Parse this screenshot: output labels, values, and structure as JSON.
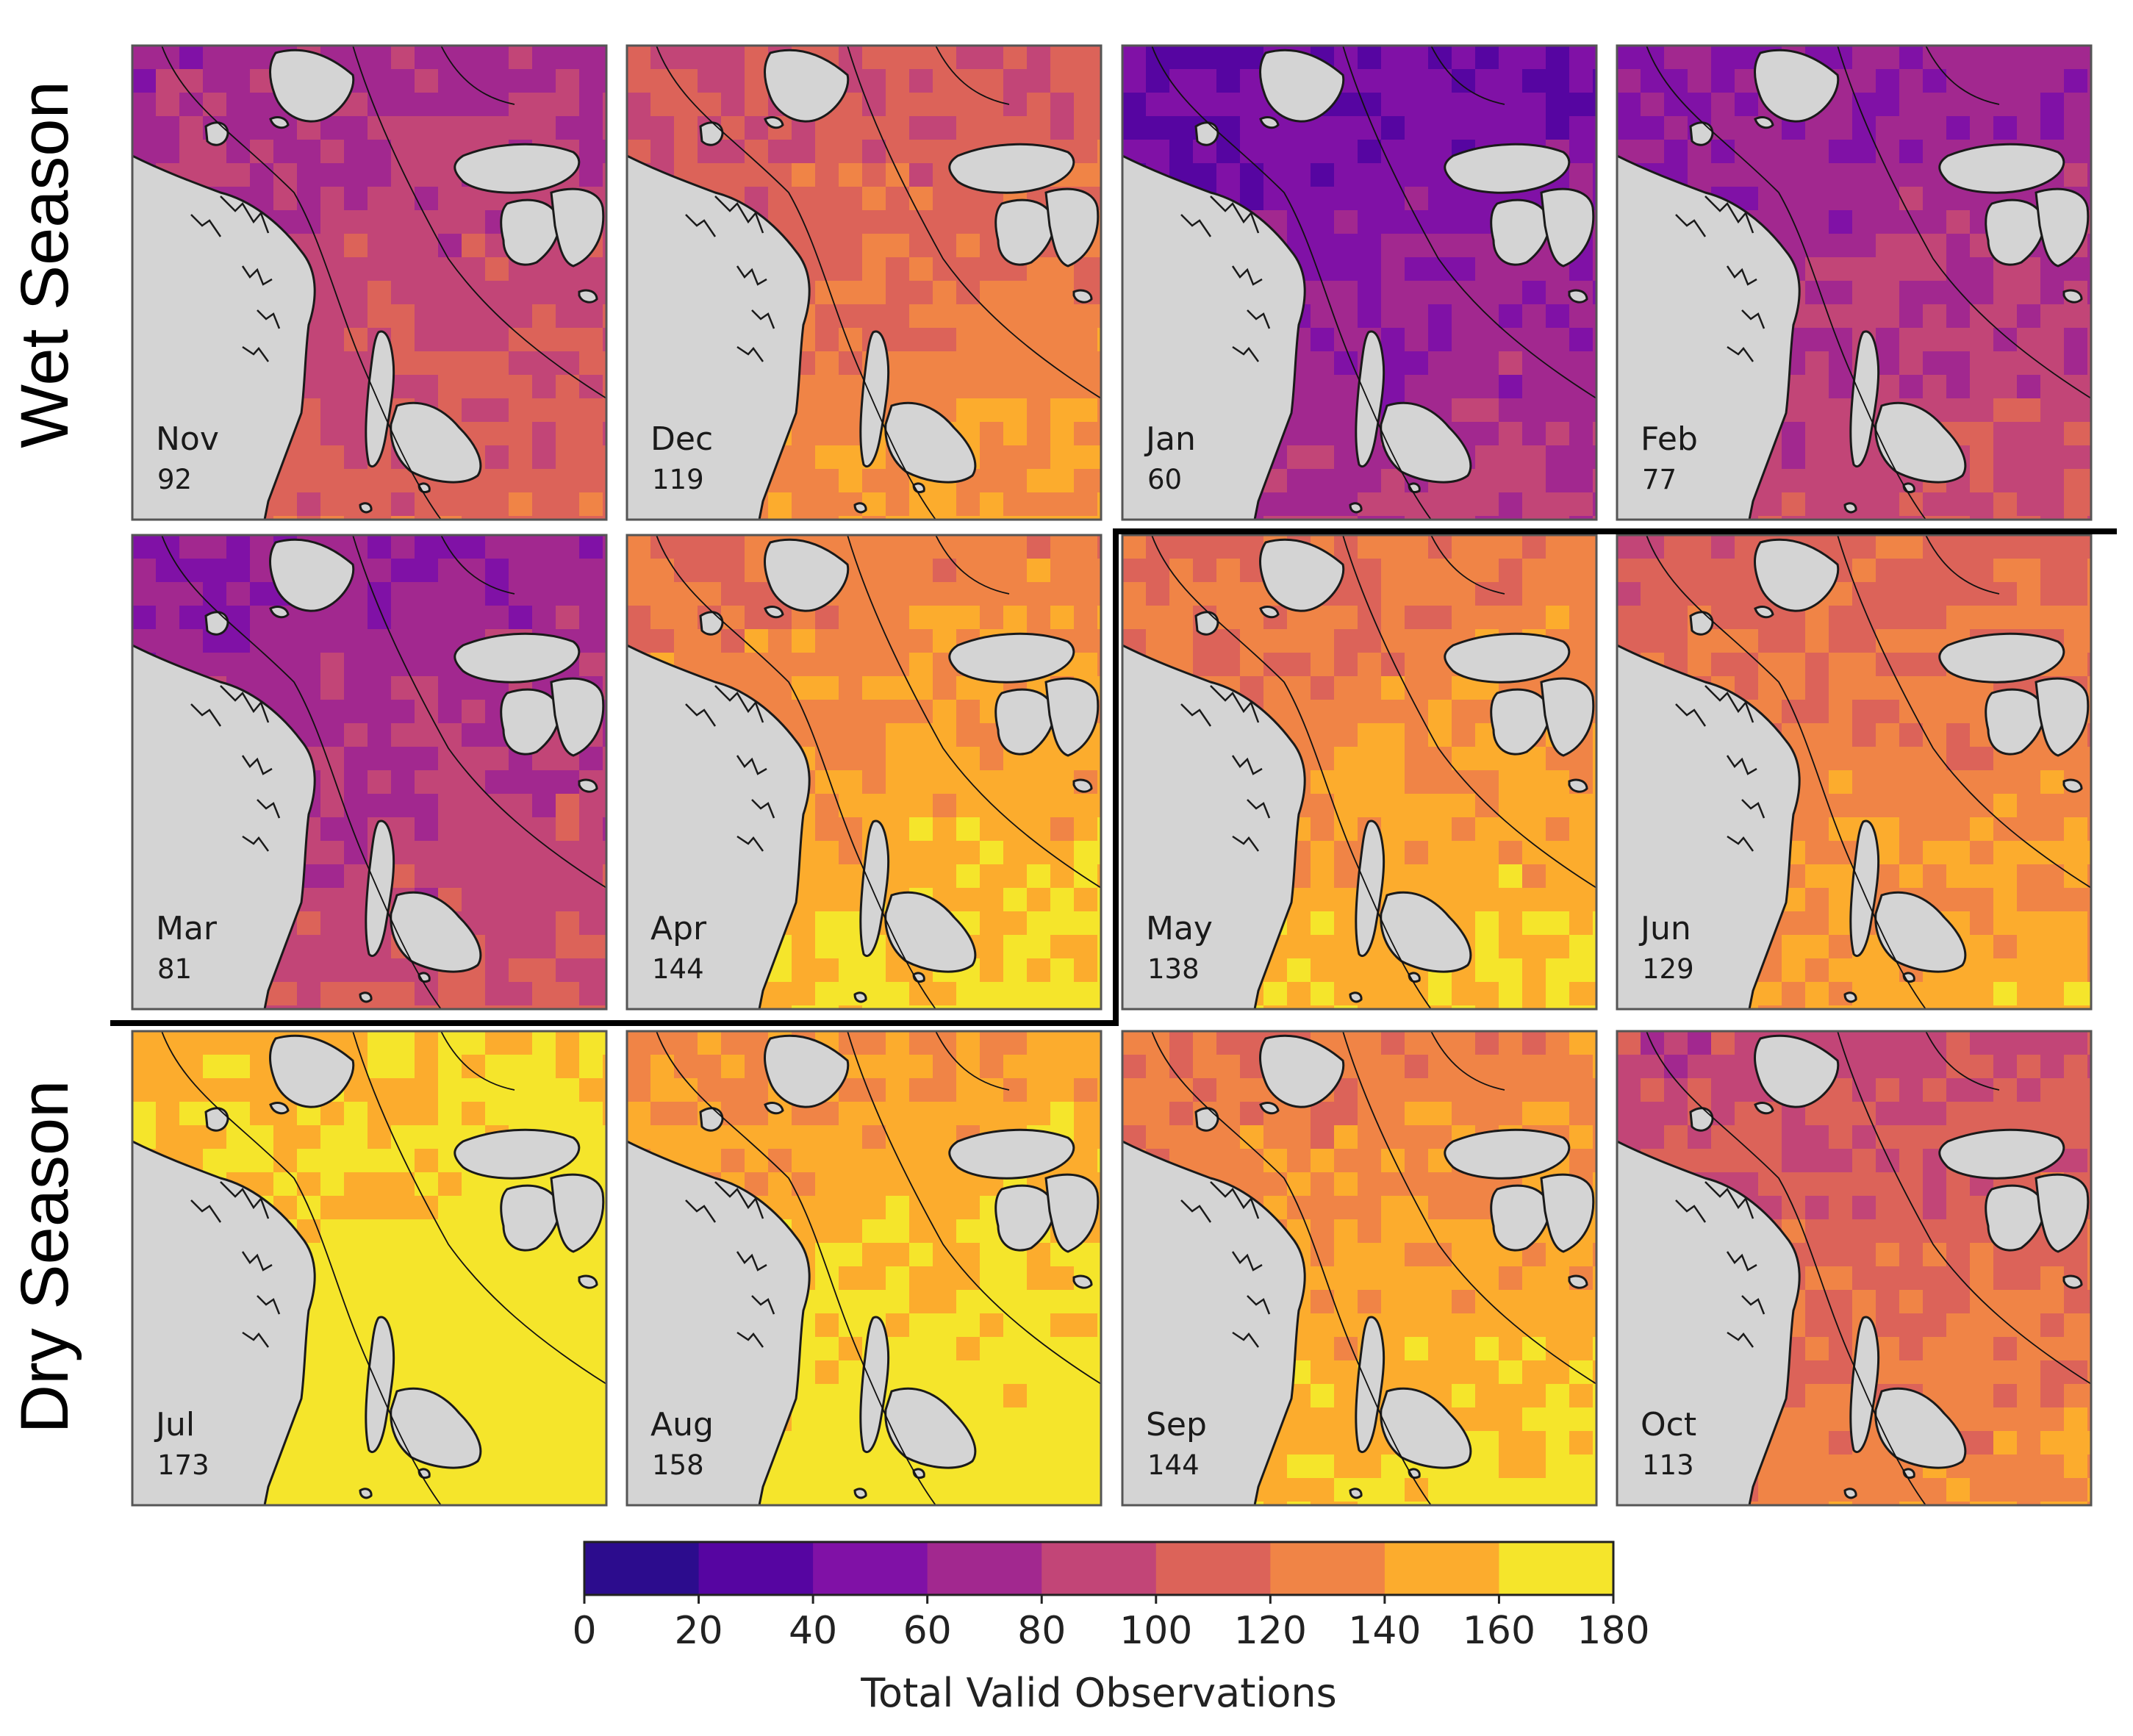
{
  "seasons": {
    "wet_label": "Wet Season",
    "dry_label": "Dry Season"
  },
  "panels": [
    {
      "month": "Nov",
      "count": "92",
      "level": 92
    },
    {
      "month": "Dec",
      "count": "119",
      "level": 119
    },
    {
      "month": "Jan",
      "count": "60",
      "level": 60
    },
    {
      "month": "Feb",
      "count": "77",
      "level": 77
    },
    {
      "month": "Mar",
      "count": "81",
      "level": 81
    },
    {
      "month": "Apr",
      "count": "144",
      "level": 144
    },
    {
      "month": "May",
      "count": "138",
      "level": 138
    },
    {
      "month": "Jun",
      "count": "129",
      "level": 129
    },
    {
      "month": "Jul",
      "count": "173",
      "level": 173
    },
    {
      "month": "Aug",
      "count": "158",
      "level": 158
    },
    {
      "month": "Sep",
      "count": "144",
      "level": 144
    },
    {
      "month": "Oct",
      "count": "113",
      "level": 113
    }
  ],
  "colorbar": {
    "title": "Total Valid Observations",
    "ticks": [
      "0",
      "20",
      "40",
      "60",
      "80",
      "100",
      "120",
      "140",
      "160",
      "180"
    ],
    "colors": [
      "#2c0c8d",
      "#5605a1",
      "#8011a6",
      "#a2288f",
      "#c24577",
      "#dc6359",
      "#f08446",
      "#fcac2d",
      "#f5e52b"
    ]
  },
  "land_color": "#d4d4d4",
  "coast_color": "#1a1a1a"
}
